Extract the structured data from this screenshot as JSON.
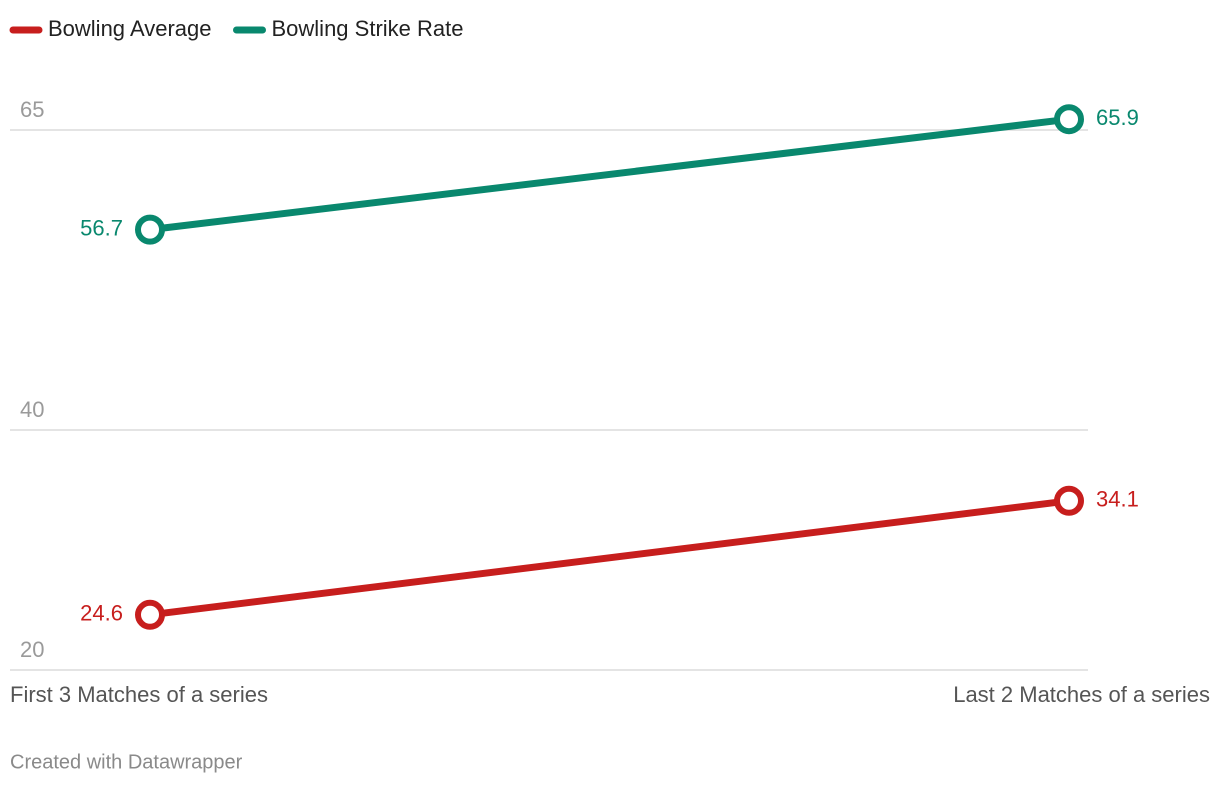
{
  "chart_data": {
    "type": "line",
    "categories": [
      "First 3 Matches of a series",
      "Last 2 Matches of a series"
    ],
    "series": [
      {
        "name": "Bowling Average",
        "color": "#c71e1d",
        "values": [
          24.6,
          34.1
        ]
      },
      {
        "name": "Bowling Strike Rate",
        "color": "#09886e",
        "values": [
          56.7,
          65.9
        ]
      }
    ],
    "ylim": [
      20,
      65
    ],
    "yticks": [
      20,
      40,
      65
    ],
    "grid": true,
    "legend": "top-left",
    "credit": "Created with Datawrapper"
  }
}
